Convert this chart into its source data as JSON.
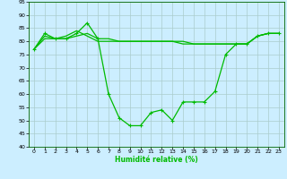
{
  "xlabel": "Humidité relative (%)",
  "background_color": "#cceeff",
  "grid_color": "#aacccc",
  "line_color": "#00bb00",
  "xlim": [
    -0.5,
    23.5
  ],
  "ylim": [
    40,
    95
  ],
  "yticks": [
    40,
    45,
    50,
    55,
    60,
    65,
    70,
    75,
    80,
    85,
    90,
    95
  ],
  "xticks": [
    0,
    1,
    2,
    3,
    4,
    5,
    6,
    7,
    8,
    9,
    10,
    11,
    12,
    13,
    14,
    15,
    16,
    17,
    18,
    19,
    20,
    21,
    22,
    23
  ],
  "series1_x": [
    0,
    1,
    2,
    3,
    4,
    5,
    6,
    7,
    8,
    9,
    10,
    11,
    12,
    13,
    14,
    15,
    16,
    17,
    18,
    19,
    20,
    21,
    22,
    23
  ],
  "series1_y": [
    77,
    83,
    81,
    81,
    83,
    87,
    81,
    60,
    51,
    48,
    48,
    53,
    54,
    50,
    57,
    57,
    57,
    61,
    75,
    79,
    79,
    82,
    83,
    83
  ],
  "series2_x": [
    0,
    1,
    2,
    3,
    4,
    5,
    6,
    7,
    8,
    9,
    10,
    11,
    12,
    13,
    14,
    15,
    16,
    17,
    18,
    19,
    20,
    21,
    22,
    23
  ],
  "series2_y": [
    77,
    81,
    81,
    82,
    84,
    82,
    80,
    80,
    80,
    80,
    80,
    80,
    80,
    80,
    80,
    79,
    79,
    79,
    79,
    79,
    79,
    82,
    83,
    83
  ],
  "series3_x": [
    0,
    1,
    2,
    3,
    4,
    5,
    6,
    7,
    8,
    9,
    10,
    11,
    12,
    13,
    14,
    15,
    16,
    17,
    18,
    19,
    20,
    21,
    22,
    23
  ],
  "series3_y": [
    77,
    82,
    81,
    81,
    82,
    83,
    81,
    81,
    80,
    80,
    80,
    80,
    80,
    80,
    79,
    79,
    79,
    79,
    79,
    79,
    79,
    82,
    83,
    83
  ],
  "markersize": 2.5,
  "linewidth": 0.9
}
